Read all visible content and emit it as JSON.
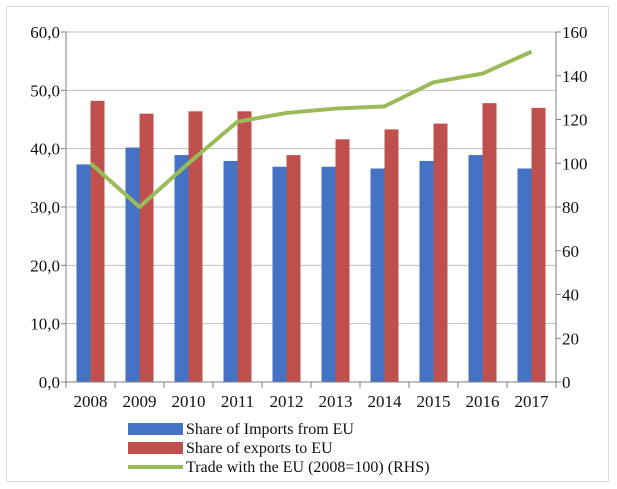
{
  "chart_data": {
    "type": "bar",
    "categories": [
      "2008",
      "2009",
      "2010",
      "2011",
      "2012",
      "2013",
      "2014",
      "2015",
      "2016",
      "2017"
    ],
    "series": [
      {
        "name": "Share of Imports from EU",
        "type": "bar",
        "axis": "left",
        "color": "#4472c4",
        "values": [
          37.3,
          40.2,
          38.9,
          37.9,
          36.9,
          36.9,
          36.6,
          37.9,
          38.9,
          36.6
        ]
      },
      {
        "name": "Share of exports to EU",
        "type": "bar",
        "axis": "left",
        "color": "#c0504d",
        "values": [
          48.2,
          46.0,
          46.4,
          46.4,
          38.9,
          41.6,
          43.3,
          44.3,
          47.8,
          47.0
        ]
      },
      {
        "name": "Trade with the EU (2008=100) (RHS)",
        "type": "line",
        "axis": "right",
        "color": "#9bbb59",
        "values": [
          100,
          80,
          100,
          119,
          123,
          125,
          126,
          137,
          141,
          151
        ]
      }
    ],
    "ylim": [
      0,
      60
    ],
    "y2lim": [
      0,
      160
    ],
    "yticks": [
      "0,0",
      "10,0",
      "20,0",
      "30,0",
      "40,0",
      "50,0",
      "60,0"
    ],
    "y2ticks": [
      "0",
      "20",
      "40",
      "60",
      "80",
      "100",
      "120",
      "140",
      "160"
    ],
    "legend": "bottom",
    "grid": true
  }
}
